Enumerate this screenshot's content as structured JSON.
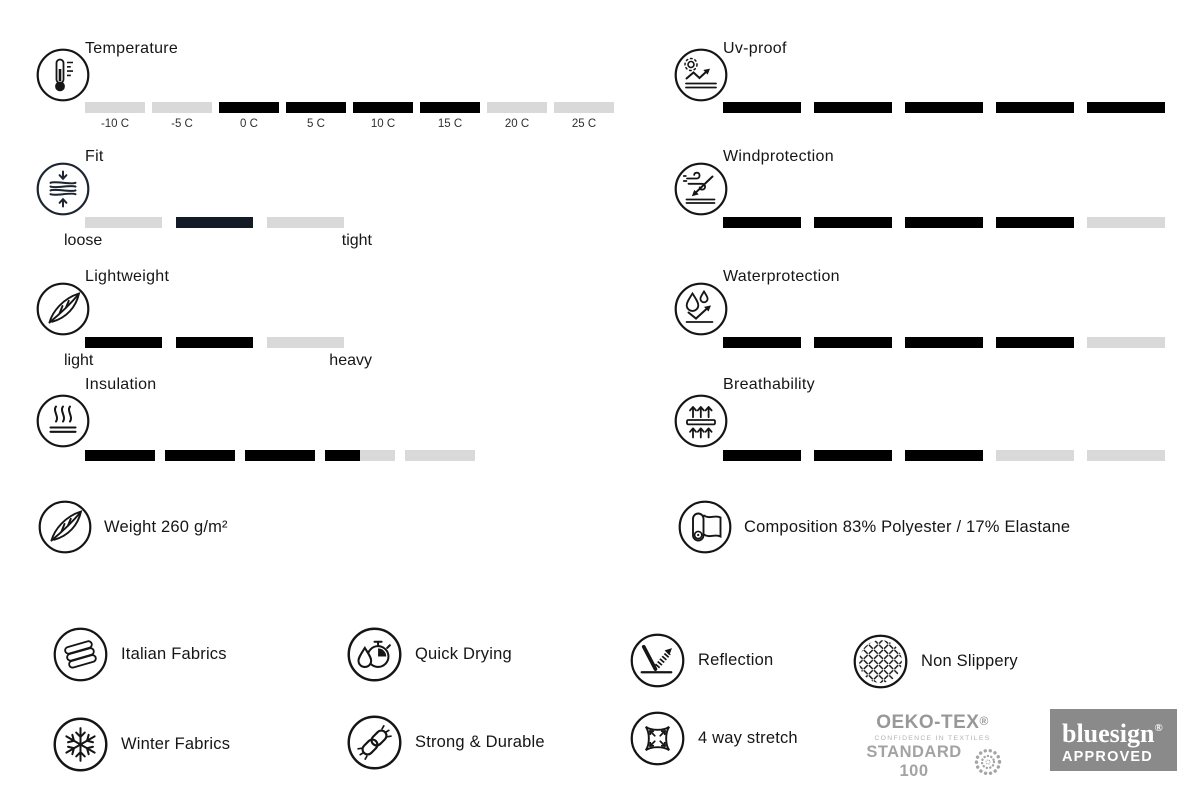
{
  "colors": {
    "bar_active": "#000000",
    "bar_inactive": "#d9d9d9",
    "bar_fit_active": "#131b26",
    "bluesign_bg": "#8a8a8a",
    "oeko_gray": "#9b9b9b"
  },
  "gauges_left": [
    {
      "id": "temperature",
      "title": "Temperature",
      "icon": "thermometer-icon",
      "states": [
        "gray",
        "gray",
        "black",
        "black",
        "black",
        "black",
        "gray",
        "gray"
      ],
      "tick_labels": [
        "-10 C",
        "-5 C",
        "0 C",
        "5 C",
        "10 C",
        "15 C",
        "20 C",
        "25 C"
      ]
    },
    {
      "id": "fit",
      "title": "Fit",
      "icon": "fit-compression-icon",
      "states": [
        "gray",
        "navy",
        "gray"
      ],
      "end_labels": [
        "loose",
        "tight"
      ]
    },
    {
      "id": "lightweight",
      "title": "Lightweight",
      "icon": "feather-icon",
      "states": [
        "black",
        "black",
        "gray"
      ],
      "end_labels": [
        "light",
        "heavy"
      ]
    },
    {
      "id": "insulation",
      "title": "Insulation",
      "icon": "insulation-heat-icon",
      "states": [
        "black",
        "black",
        "black",
        "half",
        "gray"
      ]
    }
  ],
  "gauges_right": [
    {
      "id": "uv_proof",
      "title": "Uv-proof",
      "icon": "uv-proof-icon",
      "states": [
        "black",
        "black",
        "black",
        "black",
        "black"
      ]
    },
    {
      "id": "windprotection",
      "title": "Windprotection",
      "icon": "windprotection-icon",
      "states": [
        "black",
        "black",
        "black",
        "black",
        "gray"
      ]
    },
    {
      "id": "waterprotection",
      "title": "Waterprotection",
      "icon": "waterprotection-icon",
      "states": [
        "black",
        "black",
        "black",
        "black",
        "gray"
      ]
    },
    {
      "id": "breathability",
      "title": "Breathability",
      "icon": "breathability-icon",
      "states": [
        "black",
        "black",
        "black",
        "gray",
        "gray"
      ]
    }
  ],
  "weight": {
    "label": "Weight 260 g/m²",
    "icon": "feather-icon"
  },
  "composition": {
    "label": "Composition 83% Polyester / 17% Elastane",
    "icon": "fabric-roll-icon"
  },
  "features": [
    {
      "label": "Italian Fabrics",
      "icon": "fabric-stack-icon"
    },
    {
      "label": "Quick Drying",
      "icon": "quick-dry-icon"
    },
    {
      "label": "Reflection",
      "icon": "reflection-icon"
    },
    {
      "label": "Non Slippery",
      "icon": "non-slippery-icon"
    },
    {
      "label": "Winter Fabrics",
      "icon": "snowflake-icon"
    },
    {
      "label": "Strong & Durable",
      "icon": "chain-link-icon"
    },
    {
      "label": "4 way stretch",
      "icon": "four-way-stretch-icon"
    }
  ],
  "certifications": {
    "oeko_tex": {
      "brand": "OEKO-TEX",
      "reg": "®",
      "tagline": "CONFIDENCE IN TEXTILES",
      "standard": "STANDARD 100"
    },
    "bluesign": {
      "brand": "bluesign",
      "reg": "®",
      "approved": "APPROVED"
    }
  }
}
